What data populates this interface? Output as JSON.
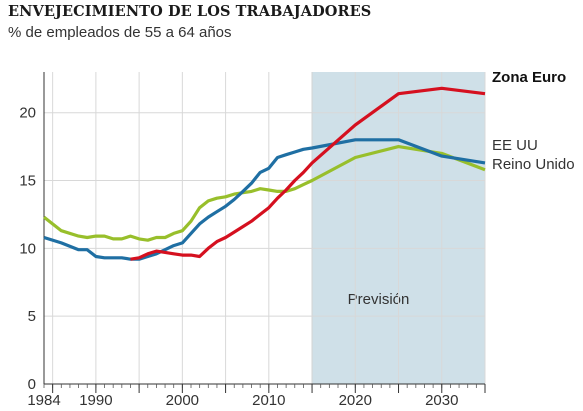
{
  "title": "ENVEJECIMIENTO DE LOS TRABAJADORES",
  "subtitle": "% de empleados de 55 a 64 años",
  "colors": {
    "zona_euro": "#d5101f",
    "ee_uu": "#1f6fa3",
    "reino_unido": "#98bf2b",
    "prevision_band": "#cfe0e8",
    "grid": "#d8d8d8",
    "axis": "#333333"
  },
  "chart_data": {
    "type": "line",
    "title": "ENVEJECIMIENTO DE LOS TRABAJADORES",
    "subtitle": "% de empleados de 55 a 64 años",
    "xlim": [
      1984,
      2035
    ],
    "ylim": [
      0,
      23
    ],
    "x_ticks": [
      1984,
      1990,
      2000,
      2010,
      2020,
      2030
    ],
    "y_ticks": [
      0,
      5,
      10,
      15,
      20
    ],
    "grid": true,
    "legend": "direct labels at right",
    "forecast": {
      "label": "Previsión",
      "from": 2015,
      "to": 2035
    },
    "series": [
      {
        "name": "Zona Euro",
        "color": "#d5101f",
        "x": [
          1994,
          1995,
          1996,
          1997,
          1998,
          1999,
          2000,
          2001,
          2002,
          2003,
          2004,
          2005,
          2006,
          2007,
          2008,
          2009,
          2010,
          2011,
          2012,
          2013,
          2014,
          2015,
          2020,
          2025,
          2030,
          2035
        ],
        "values": [
          9.2,
          9.3,
          9.6,
          9.8,
          9.7,
          9.6,
          9.5,
          9.5,
          9.4,
          10.0,
          10.5,
          10.8,
          11.2,
          11.6,
          12.0,
          12.5,
          13.0,
          13.7,
          14.3,
          15.0,
          15.6,
          16.3,
          19.1,
          21.4,
          21.8,
          21.4
        ]
      },
      {
        "name": "EE UU",
        "color": "#1f6fa3",
        "x": [
          1984,
          1986,
          1988,
          1989,
          1990,
          1991,
          1992,
          1993,
          1994,
          1995,
          1996,
          1997,
          1998,
          1999,
          2000,
          2001,
          2002,
          2003,
          2004,
          2005,
          2006,
          2007,
          2008,
          2009,
          2010,
          2011,
          2012,
          2013,
          2014,
          2015,
          2020,
          2025,
          2030,
          2035
        ],
        "values": [
          10.8,
          10.4,
          9.9,
          9.9,
          9.4,
          9.3,
          9.3,
          9.3,
          9.2,
          9.2,
          9.4,
          9.6,
          9.9,
          10.2,
          10.4,
          11.1,
          11.8,
          12.3,
          12.7,
          13.1,
          13.6,
          14.2,
          14.8,
          15.6,
          15.9,
          16.7,
          16.9,
          17.1,
          17.3,
          17.4,
          18.0,
          18.0,
          16.8,
          16.3
        ]
      },
      {
        "name": "Reino Unido",
        "color": "#98bf2b",
        "x": [
          1984,
          1986,
          1988,
          1989,
          1990,
          1991,
          1992,
          1993,
          1994,
          1995,
          1996,
          1997,
          1998,
          1999,
          2000,
          2001,
          2002,
          2003,
          2004,
          2005,
          2006,
          2007,
          2008,
          2009,
          2010,
          2011,
          2012,
          2013,
          2014,
          2015,
          2020,
          2025,
          2030,
          2035
        ],
        "values": [
          12.3,
          11.3,
          10.9,
          10.8,
          10.9,
          10.9,
          10.7,
          10.7,
          10.9,
          10.7,
          10.6,
          10.8,
          10.8,
          11.1,
          11.3,
          12.0,
          13.0,
          13.5,
          13.7,
          13.8,
          14.0,
          14.1,
          14.2,
          14.4,
          14.3,
          14.2,
          14.2,
          14.4,
          14.7,
          15.0,
          16.7,
          17.5,
          17.0,
          15.8
        ]
      }
    ]
  }
}
